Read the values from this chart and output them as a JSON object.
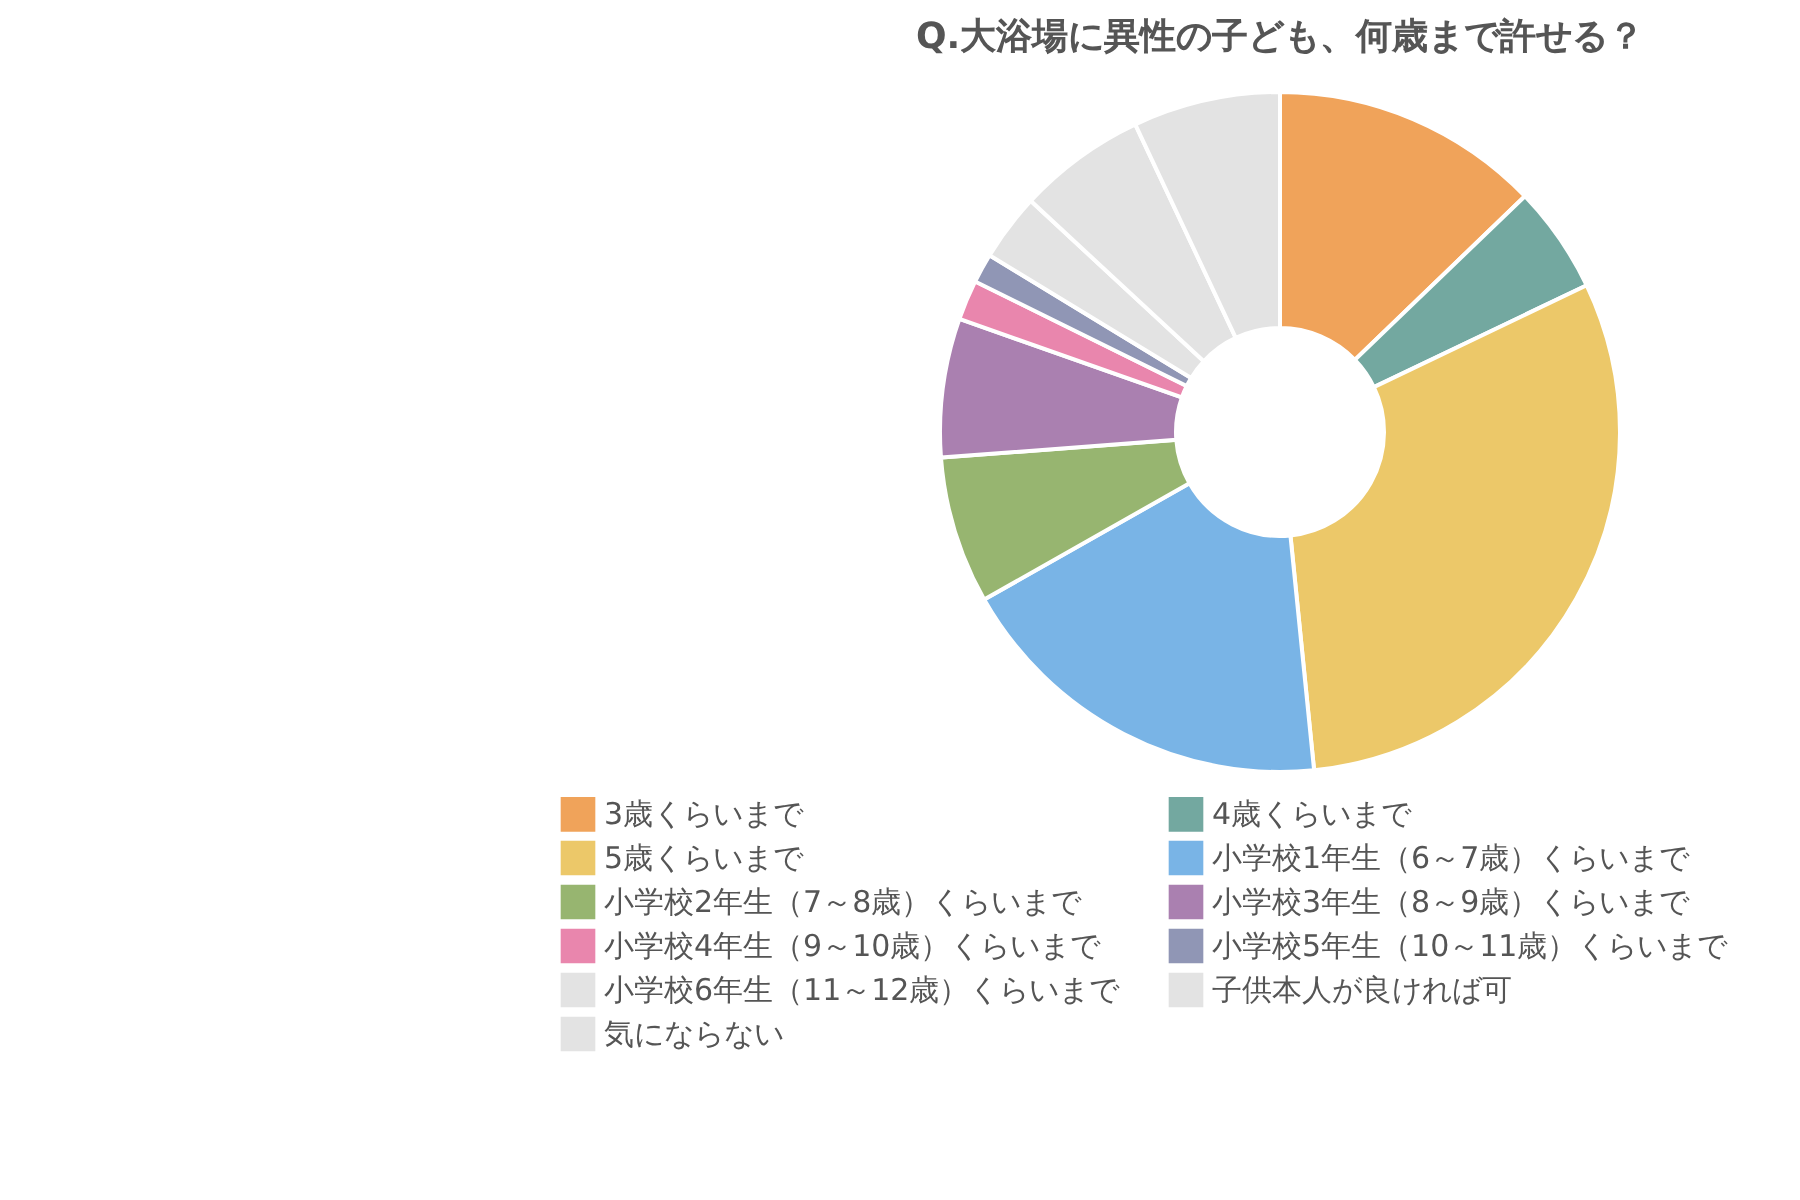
{
  "chart_data": {
    "type": "donut",
    "title": "Q.大浴場に異性の子ども、何歳まで許せる？",
    "categories": [
      "3歳くらいまで",
      "4歳くらいまで",
      "5歳くらいまで",
      "小学校1年生（6～7歳）くらいまで",
      "小学校2年生（7～8歳）くらいまで",
      "小学校3年生（8～9歳）くらいまで",
      "小学校4年生（9～10歳）くらいまで",
      "小学校5年生（10～11歳）くらいまで",
      "小学校6年生（11～12歳）くらいまで",
      "子供本人が良ければ可",
      "気にならない"
    ],
    "values": [
      12.8,
      5.1,
      30.5,
      18.4,
      7.0,
      6.6,
      1.9,
      1.4,
      3.2,
      6.1,
      7.0
    ],
    "colors": [
      "#f0a35a",
      "#73a8a0",
      "#ecc869",
      "#79b4e6",
      "#97b570",
      "#aa80b0",
      "#e986ad",
      "#9096b5",
      "#e3e3e3",
      "#e3e3e3",
      "#e3e3e3"
    ],
    "legend": "bottom"
  }
}
